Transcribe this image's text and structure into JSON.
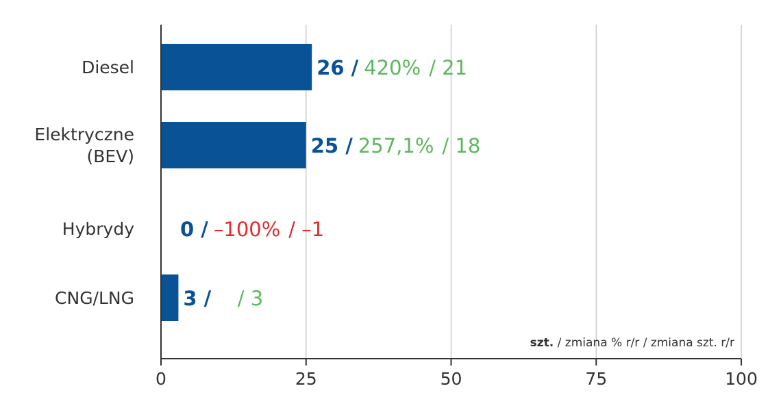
{
  "chart_data": {
    "type": "bar",
    "orientation": "horizontal",
    "categories": [
      "Diesel",
      "Elektryczne (BEV)",
      "Hybrydy",
      "CNG/LNG"
    ],
    "category_lines": [
      [
        "Diesel"
      ],
      [
        "Elektryczne",
        "(BEV)"
      ],
      [
        "Hybrydy"
      ],
      [
        "CNG/LNG"
      ]
    ],
    "values": [
      26,
      25,
      0,
      3
    ],
    "value_labels": [
      "26",
      "25",
      "0",
      "3"
    ],
    "pct_change": [
      "420%",
      "257,1%",
      "–100%",
      ""
    ],
    "unit_change": [
      "21",
      "18",
      "–1",
      "3"
    ],
    "change_sign": [
      "positive",
      "positive",
      "negative",
      "positive"
    ],
    "xlim": [
      0,
      100
    ],
    "x_ticks": [
      "0",
      "25",
      "50",
      "75",
      "100"
    ],
    "grid": true,
    "legend": {
      "bold_part": "szt.",
      "rest": " / zmiana % r/r / zmiana szt. r/r",
      "placement": "bottom-right"
    },
    "colors": {
      "bar": "#0a5296",
      "value_text": "#0a5296",
      "positive": "#5cb85c",
      "negative": "#e32b2b",
      "grid": "#cccccc",
      "axis": "#333333"
    }
  }
}
